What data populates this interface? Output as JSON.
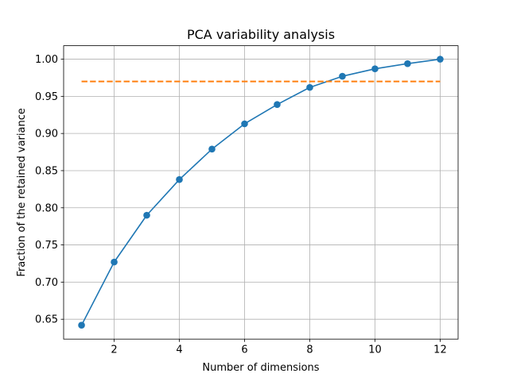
{
  "chart_data": {
    "type": "line",
    "title": "PCA variability analysis",
    "xlabel": "Number of dimensions",
    "ylabel": "Fraction of the retained variance",
    "xlim": [
      0.45,
      12.55
    ],
    "ylim": [
      0.6233,
      1.0181
    ],
    "xticks": [
      2,
      4,
      6,
      8,
      10,
      12
    ],
    "yticks": [
      0.65,
      0.7,
      0.75,
      0.8,
      0.85,
      0.9,
      0.95,
      1.0
    ],
    "ytick_labels": [
      "0.65",
      "0.70",
      "0.75",
      "0.80",
      "0.85",
      "0.90",
      "0.95",
      "1.00"
    ],
    "grid": true,
    "series": [
      {
        "style": "solid-line-with-circle-markers",
        "color": "#1f77b4",
        "x": [
          1,
          2,
          3,
          4,
          5,
          6,
          7,
          8,
          9,
          10,
          11,
          12
        ],
        "y": [
          0.642,
          0.727,
          0.79,
          0.838,
          0.879,
          0.913,
          0.939,
          0.962,
          0.977,
          0.987,
          0.994,
          1.0
        ]
      },
      {
        "style": "dashed-line",
        "color": "#ff7f0e",
        "x": [
          1,
          12
        ],
        "y": [
          0.97,
          0.97
        ]
      }
    ]
  }
}
